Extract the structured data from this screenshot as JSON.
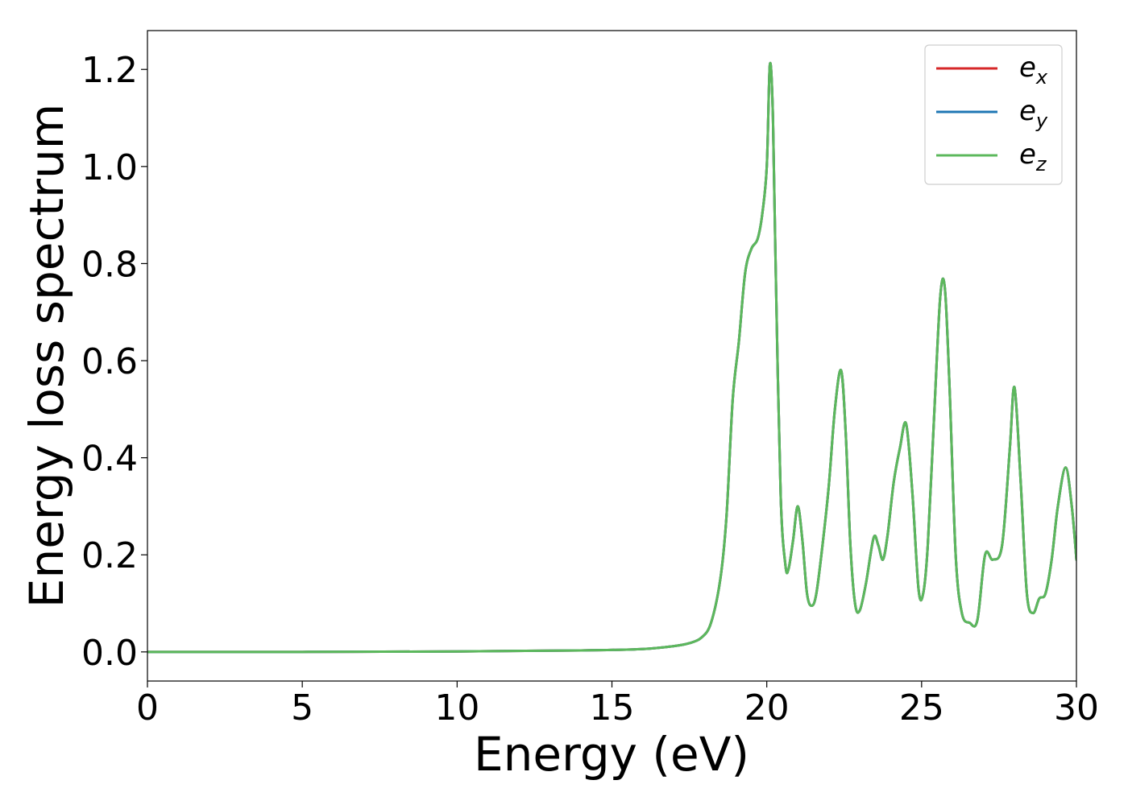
{
  "chart_data": {
    "type": "line",
    "xlabel": "Energy (eV)",
    "ylabel": "Energy loss spectrum",
    "xlim": [
      0,
      30
    ],
    "ylim": [
      -0.06,
      1.28
    ],
    "xticks": [
      0,
      5,
      10,
      15,
      20,
      25,
      30
    ],
    "xtick_labels": [
      "0",
      "5",
      "10",
      "15",
      "20",
      "25",
      "30"
    ],
    "yticks": [
      0.0,
      0.2,
      0.4,
      0.6,
      0.8,
      1.0,
      1.2
    ],
    "ytick_labels": [
      "0.0",
      "0.2",
      "0.4",
      "0.6",
      "0.8",
      "1.0",
      "1.2"
    ],
    "grid": false,
    "legend_position": "top-right",
    "series": [
      {
        "name": "e_x",
        "legend_base": "e",
        "legend_sub": "x",
        "color": "#d62728",
        "x": [
          0,
          5,
          10,
          14,
          16,
          17,
          17.5,
          17.9,
          18.2,
          18.5,
          18.7,
          18.9,
          19.1,
          19.3,
          19.5,
          19.7,
          19.85,
          20.0,
          20.1,
          20.2,
          20.3,
          20.45,
          20.6,
          20.7,
          20.85,
          21.0,
          21.15,
          21.3,
          21.45,
          21.6,
          21.8,
          22.0,
          22.2,
          22.4,
          22.55,
          22.7,
          22.85,
          23.0,
          23.2,
          23.45,
          23.6,
          23.75,
          23.9,
          24.1,
          24.3,
          24.5,
          24.7,
          24.9,
          25.05,
          25.2,
          25.4,
          25.6,
          25.75,
          25.9,
          26.1,
          26.3,
          26.55,
          26.8,
          27.05,
          27.3,
          27.6,
          27.85,
          28.0,
          28.2,
          28.4,
          28.6,
          28.8,
          29.0,
          29.2,
          29.4,
          29.65,
          29.85,
          30.0
        ],
        "y": [
          0.0,
          0.0,
          0.001,
          0.003,
          0.006,
          0.012,
          0.018,
          0.03,
          0.06,
          0.15,
          0.28,
          0.52,
          0.64,
          0.78,
          0.83,
          0.85,
          0.9,
          1.0,
          1.21,
          1.1,
          0.75,
          0.32,
          0.18,
          0.17,
          0.23,
          0.3,
          0.23,
          0.12,
          0.095,
          0.12,
          0.22,
          0.34,
          0.5,
          0.58,
          0.45,
          0.22,
          0.1,
          0.085,
          0.14,
          0.235,
          0.22,
          0.19,
          0.24,
          0.35,
          0.42,
          0.47,
          0.33,
          0.13,
          0.12,
          0.22,
          0.48,
          0.73,
          0.75,
          0.55,
          0.2,
          0.08,
          0.06,
          0.065,
          0.2,
          0.19,
          0.22,
          0.42,
          0.545,
          0.35,
          0.12,
          0.08,
          0.11,
          0.12,
          0.19,
          0.3,
          0.38,
          0.3,
          0.19
        ]
      },
      {
        "name": "e_y",
        "legend_base": "e",
        "legend_sub": "y",
        "color": "#1f77b4",
        "x": [
          0,
          5,
          10,
          14,
          16,
          17,
          17.5,
          17.9,
          18.2,
          18.5,
          18.7,
          18.9,
          19.1,
          19.3,
          19.5,
          19.7,
          19.85,
          20.0,
          20.1,
          20.2,
          20.3,
          20.45,
          20.6,
          20.7,
          20.85,
          21.0,
          21.15,
          21.3,
          21.45,
          21.6,
          21.8,
          22.0,
          22.2,
          22.4,
          22.55,
          22.7,
          22.85,
          23.0,
          23.2,
          23.45,
          23.6,
          23.75,
          23.9,
          24.1,
          24.3,
          24.5,
          24.7,
          24.9,
          25.05,
          25.2,
          25.4,
          25.6,
          25.75,
          25.9,
          26.1,
          26.3,
          26.55,
          26.8,
          27.05,
          27.3,
          27.6,
          27.85,
          28.0,
          28.2,
          28.4,
          28.6,
          28.8,
          29.0,
          29.2,
          29.4,
          29.65,
          29.85,
          30.0
        ],
        "y": [
          0.0,
          0.0,
          0.001,
          0.003,
          0.006,
          0.012,
          0.018,
          0.03,
          0.06,
          0.15,
          0.28,
          0.52,
          0.64,
          0.78,
          0.83,
          0.85,
          0.9,
          1.0,
          1.21,
          1.1,
          0.75,
          0.32,
          0.18,
          0.17,
          0.23,
          0.3,
          0.23,
          0.12,
          0.095,
          0.12,
          0.22,
          0.34,
          0.5,
          0.58,
          0.45,
          0.22,
          0.1,
          0.085,
          0.14,
          0.235,
          0.22,
          0.19,
          0.24,
          0.35,
          0.42,
          0.47,
          0.33,
          0.13,
          0.12,
          0.22,
          0.48,
          0.73,
          0.75,
          0.55,
          0.2,
          0.08,
          0.06,
          0.065,
          0.2,
          0.19,
          0.22,
          0.42,
          0.545,
          0.35,
          0.12,
          0.08,
          0.11,
          0.12,
          0.19,
          0.3,
          0.38,
          0.3,
          0.19
        ]
      },
      {
        "name": "e_z",
        "legend_base": "e",
        "legend_sub": "z",
        "color": "#5cb85c",
        "x": [
          0,
          5,
          10,
          14,
          16,
          17,
          17.5,
          17.9,
          18.2,
          18.5,
          18.7,
          18.9,
          19.1,
          19.3,
          19.5,
          19.7,
          19.85,
          20.0,
          20.1,
          20.2,
          20.3,
          20.45,
          20.6,
          20.7,
          20.85,
          21.0,
          21.15,
          21.3,
          21.45,
          21.6,
          21.8,
          22.0,
          22.2,
          22.4,
          22.55,
          22.7,
          22.85,
          23.0,
          23.2,
          23.45,
          23.6,
          23.75,
          23.9,
          24.1,
          24.3,
          24.5,
          24.7,
          24.9,
          25.05,
          25.2,
          25.4,
          25.6,
          25.75,
          25.9,
          26.1,
          26.3,
          26.55,
          26.8,
          27.05,
          27.3,
          27.6,
          27.85,
          28.0,
          28.2,
          28.4,
          28.6,
          28.8,
          29.0,
          29.2,
          29.4,
          29.65,
          29.85,
          30.0
        ],
        "y": [
          0.0,
          0.0,
          0.001,
          0.003,
          0.006,
          0.012,
          0.018,
          0.03,
          0.06,
          0.15,
          0.28,
          0.52,
          0.64,
          0.78,
          0.83,
          0.85,
          0.9,
          1.0,
          1.21,
          1.1,
          0.75,
          0.32,
          0.18,
          0.17,
          0.23,
          0.3,
          0.23,
          0.12,
          0.095,
          0.12,
          0.22,
          0.34,
          0.5,
          0.58,
          0.45,
          0.22,
          0.1,
          0.085,
          0.14,
          0.235,
          0.22,
          0.19,
          0.24,
          0.35,
          0.42,
          0.47,
          0.33,
          0.13,
          0.12,
          0.22,
          0.48,
          0.73,
          0.75,
          0.55,
          0.2,
          0.08,
          0.06,
          0.065,
          0.2,
          0.19,
          0.22,
          0.42,
          0.545,
          0.35,
          0.12,
          0.08,
          0.11,
          0.12,
          0.19,
          0.3,
          0.38,
          0.3,
          0.19
        ]
      }
    ]
  }
}
